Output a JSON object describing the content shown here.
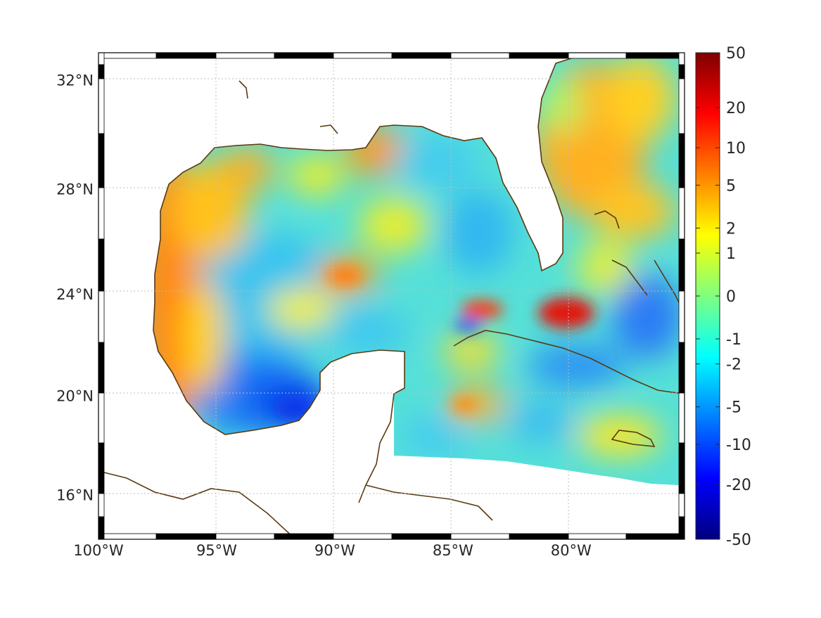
{
  "map": {
    "projection": "mercator-style lon/lat",
    "lon_range": [
      -100,
      -75.2
    ],
    "lat_range": [
      14.2,
      33
    ],
    "x_ticks": [
      {
        "value": -100,
        "label": "100°W"
      },
      {
        "value": -95,
        "label": "95°W"
      },
      {
        "value": -90,
        "label": "90°W"
      },
      {
        "value": -85,
        "label": "85°W"
      },
      {
        "value": -80,
        "label": "80°W"
      }
    ],
    "y_ticks": [
      {
        "value": 32,
        "label": "32°N"
      },
      {
        "value": 28,
        "label": "28°N"
      },
      {
        "value": 24,
        "label": "24°N"
      },
      {
        "value": 20,
        "label": "20°N"
      },
      {
        "value": 16,
        "label": "16°N"
      }
    ],
    "grid": true,
    "grid_style": "dotted",
    "coastline_color": "#5a3a10",
    "frame_style": "black-white alternating border"
  },
  "colorbar": {
    "colormap": "jet",
    "placement": "right",
    "scale": "symmetric log",
    "ticks": [
      {
        "value": 50,
        "label": "50"
      },
      {
        "value": 20,
        "label": "20"
      },
      {
        "value": 10,
        "label": "10"
      },
      {
        "value": 5,
        "label": "5"
      },
      {
        "value": 2,
        "label": "2"
      },
      {
        "value": 1,
        "label": "1"
      },
      {
        "value": 0,
        "label": "0"
      },
      {
        "value": -1,
        "label": "-1"
      },
      {
        "value": -2,
        "label": "-2"
      },
      {
        "value": -5,
        "label": "-5"
      },
      {
        "value": -10,
        "label": "-10"
      },
      {
        "value": -20,
        "label": "-20"
      },
      {
        "value": -50,
        "label": "-50"
      }
    ],
    "range": [
      -50,
      50
    ]
  }
}
